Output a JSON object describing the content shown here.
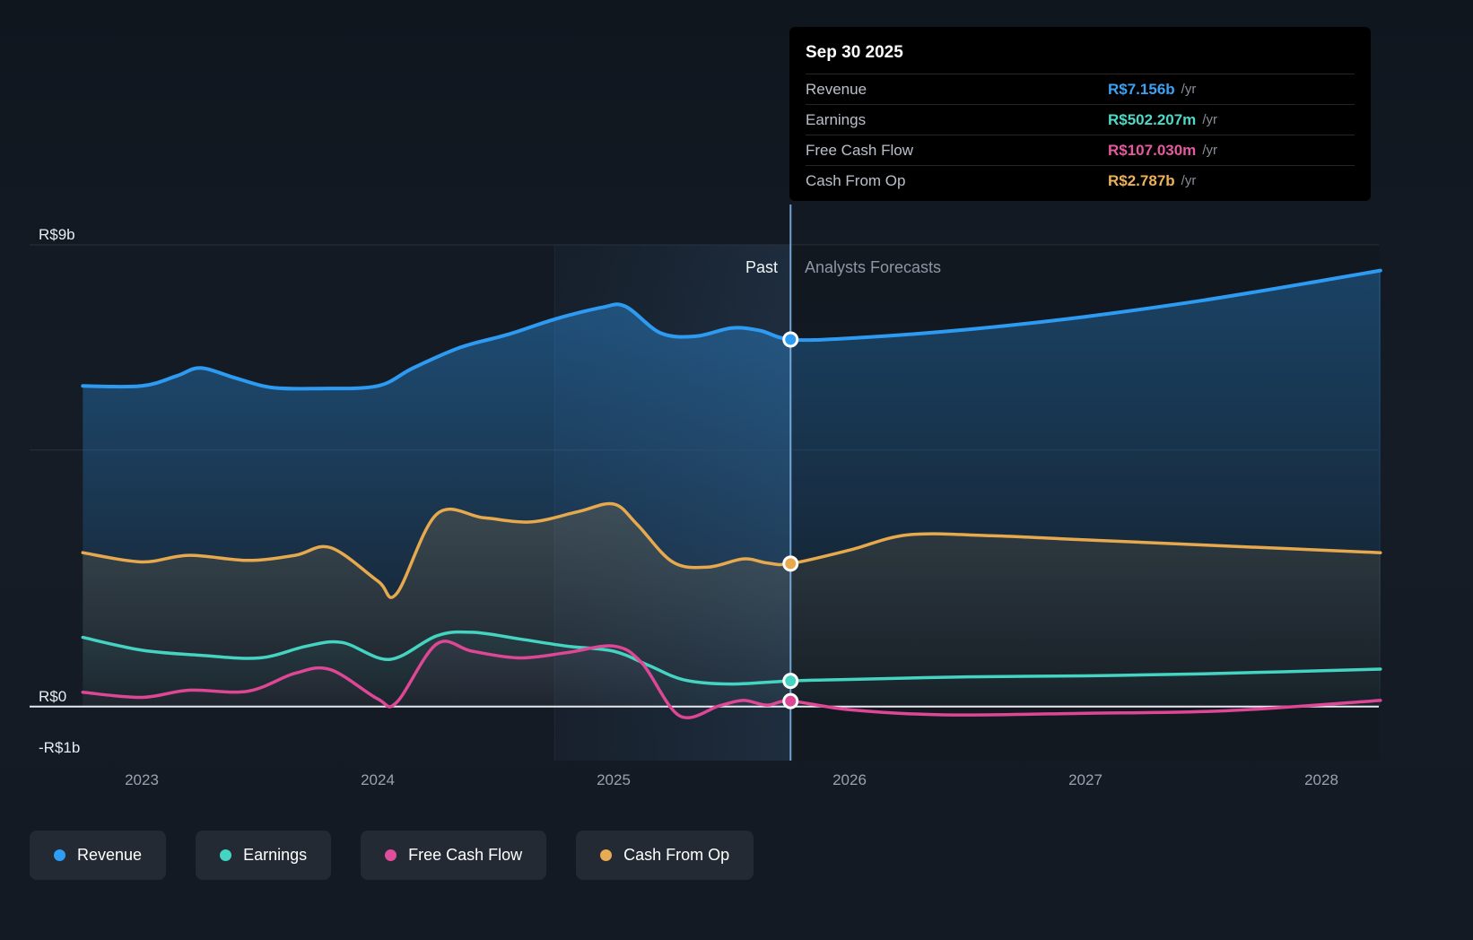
{
  "tooltip": {
    "date": "Sep 30 2025",
    "rows": [
      {
        "label": "Revenue",
        "value": "R$7.156b",
        "unit": "/yr",
        "color": "#3aa1f5"
      },
      {
        "label": "Earnings",
        "value": "R$502.207m",
        "unit": "/yr",
        "color": "#50d7c5"
      },
      {
        "label": "Free Cash Flow",
        "value": "R$107.030m",
        "unit": "/yr",
        "color": "#e55a9f"
      },
      {
        "label": "Cash From Op",
        "value": "R$2.787b",
        "unit": "/yr",
        "color": "#ecb159"
      }
    ]
  },
  "labels": {
    "past": "Past",
    "forecast": "Analysts Forecasts"
  },
  "y_axis": [
    {
      "text": "R$9b",
      "value": 9
    },
    {
      "text": "R$0",
      "value": 0
    },
    {
      "text": "-R$1b",
      "value": -1
    }
  ],
  "x_axis": [
    {
      "text": "2023",
      "value": 2023
    },
    {
      "text": "2024",
      "value": 2024
    },
    {
      "text": "2025",
      "value": 2025
    },
    {
      "text": "2026",
      "value": 2026
    },
    {
      "text": "2027",
      "value": 2027
    },
    {
      "text": "2028",
      "value": 2028
    }
  ],
  "legend": [
    {
      "label": "Revenue",
      "color": "#2f9df4"
    },
    {
      "label": "Earnings",
      "color": "#45d6c3"
    },
    {
      "label": "Free Cash Flow",
      "color": "#df4e9b"
    },
    {
      "label": "Cash From Op",
      "color": "#e8ab56"
    }
  ],
  "chart_data": {
    "type": "line",
    "title": "Past performance and analysts forecasts",
    "unit": "R$ billions per year",
    "x_range": [
      2022.75,
      2028.25
    ],
    "y_range": [
      -1,
      9
    ],
    "gridline_values": [
      9,
      5,
      0
    ],
    "divider_x": 2025.75,
    "divider_date": "Sep 30 2025",
    "highlight_band": [
      2024.75,
      2025.75
    ],
    "series": [
      {
        "name": "Revenue",
        "color": "#2e9bf3",
        "fill_opacity": 0.42,
        "width": 4,
        "marker_value": 7.156,
        "points": [
          [
            2022.75,
            6.25
          ],
          [
            2023.0,
            6.25
          ],
          [
            2023.15,
            6.45
          ],
          [
            2023.25,
            6.6
          ],
          [
            2023.4,
            6.4
          ],
          [
            2023.55,
            6.22
          ],
          [
            2023.75,
            6.2
          ],
          [
            2024.0,
            6.25
          ],
          [
            2024.15,
            6.6
          ],
          [
            2024.35,
            7.0
          ],
          [
            2024.55,
            7.25
          ],
          [
            2024.75,
            7.55
          ],
          [
            2024.95,
            7.78
          ],
          [
            2025.05,
            7.8
          ],
          [
            2025.2,
            7.28
          ],
          [
            2025.35,
            7.22
          ],
          [
            2025.5,
            7.38
          ],
          [
            2025.62,
            7.33
          ],
          [
            2025.75,
            7.156
          ],
          [
            2026.0,
            7.18
          ],
          [
            2026.5,
            7.35
          ],
          [
            2027.0,
            7.6
          ],
          [
            2027.5,
            7.92
          ],
          [
            2028.0,
            8.3
          ],
          [
            2028.25,
            8.5
          ]
        ]
      },
      {
        "name": "Cash From Op",
        "color": "#e7a94e",
        "fill_opacity": 0.32,
        "width": 3.5,
        "marker_value": 2.787,
        "points": [
          [
            2022.75,
            3.0
          ],
          [
            2023.0,
            2.82
          ],
          [
            2023.2,
            2.95
          ],
          [
            2023.45,
            2.85
          ],
          [
            2023.65,
            2.95
          ],
          [
            2023.8,
            3.1
          ],
          [
            2024.0,
            2.45
          ],
          [
            2024.08,
            2.2
          ],
          [
            2024.25,
            3.75
          ],
          [
            2024.45,
            3.68
          ],
          [
            2024.65,
            3.6
          ],
          [
            2024.85,
            3.8
          ],
          [
            2025.0,
            3.95
          ],
          [
            2025.1,
            3.55
          ],
          [
            2025.25,
            2.82
          ],
          [
            2025.4,
            2.72
          ],
          [
            2025.55,
            2.88
          ],
          [
            2025.65,
            2.8
          ],
          [
            2025.75,
            2.787
          ],
          [
            2026.0,
            3.05
          ],
          [
            2026.25,
            3.35
          ],
          [
            2026.6,
            3.33
          ],
          [
            2027.0,
            3.25
          ],
          [
            2027.5,
            3.15
          ],
          [
            2028.25,
            3.0
          ]
        ]
      },
      {
        "name": "Earnings",
        "color": "#44d4c1",
        "fill_opacity": 0.28,
        "width": 3.5,
        "marker_value": 0.502,
        "points": [
          [
            2022.75,
            1.35
          ],
          [
            2023.0,
            1.1
          ],
          [
            2023.25,
            1.0
          ],
          [
            2023.5,
            0.95
          ],
          [
            2023.7,
            1.18
          ],
          [
            2023.85,
            1.25
          ],
          [
            2024.05,
            0.92
          ],
          [
            2024.25,
            1.38
          ],
          [
            2024.4,
            1.45
          ],
          [
            2024.6,
            1.32
          ],
          [
            2024.8,
            1.18
          ],
          [
            2025.0,
            1.08
          ],
          [
            2025.15,
            0.8
          ],
          [
            2025.3,
            0.52
          ],
          [
            2025.5,
            0.44
          ],
          [
            2025.75,
            0.502
          ],
          [
            2026.0,
            0.53
          ],
          [
            2026.5,
            0.58
          ],
          [
            2027.0,
            0.6
          ],
          [
            2027.5,
            0.64
          ],
          [
            2028.25,
            0.73
          ]
        ]
      },
      {
        "name": "Free Cash Flow",
        "color": "#dd4795",
        "fill_opacity": 0.25,
        "width": 3.5,
        "marker_value": 0.107,
        "points": [
          [
            2022.75,
            0.28
          ],
          [
            2023.0,
            0.18
          ],
          [
            2023.2,
            0.32
          ],
          [
            2023.45,
            0.3
          ],
          [
            2023.65,
            0.65
          ],
          [
            2023.8,
            0.72
          ],
          [
            2024.0,
            0.15
          ],
          [
            2024.08,
            0.08
          ],
          [
            2024.25,
            1.22
          ],
          [
            2024.4,
            1.08
          ],
          [
            2024.6,
            0.95
          ],
          [
            2024.8,
            1.05
          ],
          [
            2025.0,
            1.18
          ],
          [
            2025.12,
            0.85
          ],
          [
            2025.28,
            -0.18
          ],
          [
            2025.45,
            0.02
          ],
          [
            2025.55,
            0.12
          ],
          [
            2025.65,
            0.03
          ],
          [
            2025.75,
            0.107
          ],
          [
            2026.0,
            -0.06
          ],
          [
            2026.4,
            -0.16
          ],
          [
            2027.0,
            -0.13
          ],
          [
            2027.6,
            -0.08
          ],
          [
            2028.25,
            0.12
          ]
        ]
      }
    ]
  }
}
